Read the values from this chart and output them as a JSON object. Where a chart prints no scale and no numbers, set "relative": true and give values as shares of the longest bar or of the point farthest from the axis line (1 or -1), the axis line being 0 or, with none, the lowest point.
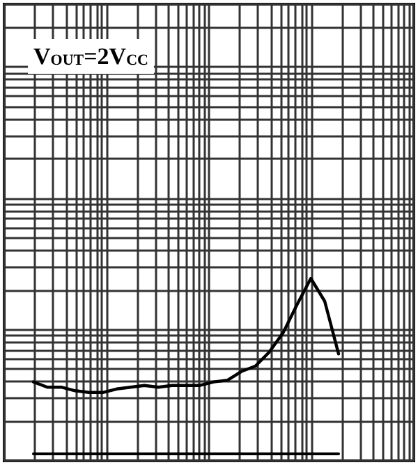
{
  "chart_data": {
    "type": "line",
    "title": "V$_{OUT}$=2V$_{CC}$",
    "relative": true,
    "grid": true,
    "marker": "none",
    "line_style": "solid",
    "categories": [
      null,
      null,
      null,
      null,
      null,
      null,
      null,
      null,
      null,
      null,
      null,
      null,
      null,
      null,
      null,
      null,
      null,
      null,
      null,
      null,
      null,
      null,
      null
    ],
    "series": [
      {
        "color": "#000000",
        "values": [
          0.41,
          0.38,
          0.38,
          0.36,
          0.35,
          0.35,
          0.37,
          0.38,
          0.39,
          0.38,
          0.39,
          0.39,
          0.39,
          0.41,
          0.42,
          0.47,
          0.5,
          0.58,
          0.69,
          0.85,
          1,
          0.87,
          0.57
        ]
      }
    ]
  }
}
